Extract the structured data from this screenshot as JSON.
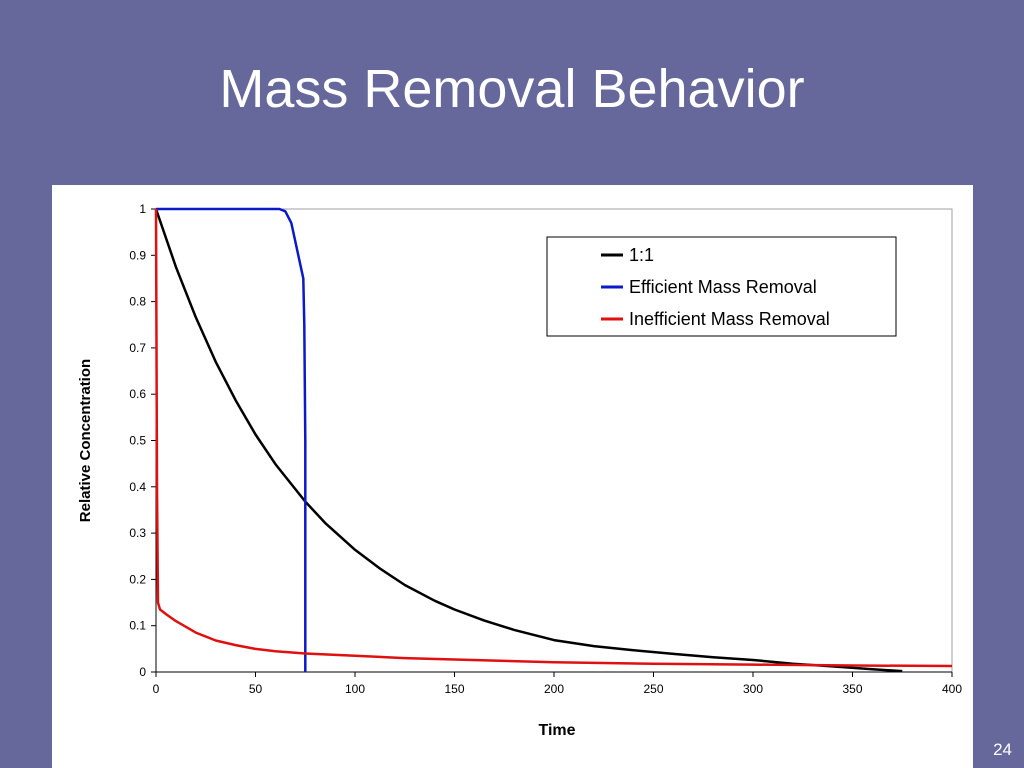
{
  "slide": {
    "title": "Mass Removal Behavior",
    "page_number": "24",
    "background_color": "#66679b"
  },
  "chart_data": {
    "type": "line",
    "title": "",
    "xlabel": "Time",
    "ylabel": "Relative Concentration",
    "xlim": [
      0,
      400
    ],
    "ylim": [
      0,
      1
    ],
    "xticks": [
      0,
      50,
      100,
      150,
      200,
      250,
      300,
      350,
      400
    ],
    "yticks": [
      0,
      0.1,
      0.2,
      0.3,
      0.4,
      0.5,
      0.6,
      0.7,
      0.8,
      0.9,
      1
    ],
    "ytick_labels": [
      "0",
      "0.1",
      "0.2",
      "0.3",
      "0.4",
      "0.5",
      "0.6",
      "0.7",
      "0.8",
      "0.9",
      "1"
    ],
    "grid": false,
    "legend_position": "top-right",
    "series": [
      {
        "name": "1:1",
        "color": "#000000",
        "points": [
          [
            0,
            1
          ],
          [
            10,
            0.875
          ],
          [
            20,
            0.766
          ],
          [
            30,
            0.67
          ],
          [
            40,
            0.587
          ],
          [
            50,
            0.513
          ],
          [
            60,
            0.449
          ],
          [
            75,
            0.368
          ],
          [
            85,
            0.322
          ],
          [
            100,
            0.264
          ],
          [
            112,
            0.225
          ],
          [
            125,
            0.188
          ],
          [
            140,
            0.154
          ],
          [
            150,
            0.135
          ],
          [
            165,
            0.111
          ],
          [
            180,
            0.091
          ],
          [
            200,
            0.069
          ],
          [
            220,
            0.056
          ],
          [
            240,
            0.047
          ],
          [
            260,
            0.039
          ],
          [
            280,
            0.032
          ],
          [
            300,
            0.026
          ],
          [
            320,
            0.018
          ],
          [
            340,
            0.012
          ],
          [
            360,
            0.006
          ],
          [
            375,
            0.002
          ]
        ]
      },
      {
        "name": "Efficient Mass Removal",
        "color": "#0a1ac8",
        "points": [
          [
            0,
            1
          ],
          [
            62,
            1
          ],
          [
            65,
            0.995
          ],
          [
            68,
            0.97
          ],
          [
            70,
            0.93
          ],
          [
            72,
            0.89
          ],
          [
            73,
            0.87
          ],
          [
            74,
            0.85
          ],
          [
            74.5,
            0.75
          ],
          [
            75,
            0.5
          ],
          [
            75,
            0
          ]
        ]
      },
      {
        "name": "Inefficient Mass Removal",
        "color": "#e01010",
        "points": [
          [
            0,
            1
          ],
          [
            0.5,
            0.4
          ],
          [
            1,
            0.15
          ],
          [
            2,
            0.135
          ],
          [
            5,
            0.125
          ],
          [
            10,
            0.11
          ],
          [
            20,
            0.085
          ],
          [
            30,
            0.068
          ],
          [
            40,
            0.058
          ],
          [
            50,
            0.05
          ],
          [
            60,
            0.045
          ],
          [
            75,
            0.04
          ],
          [
            100,
            0.035
          ],
          [
            125,
            0.03
          ],
          [
            150,
            0.027
          ],
          [
            175,
            0.024
          ],
          [
            200,
            0.021
          ],
          [
            250,
            0.018
          ],
          [
            300,
            0.016
          ],
          [
            350,
            0.014
          ],
          [
            400,
            0.013
          ]
        ]
      }
    ]
  }
}
